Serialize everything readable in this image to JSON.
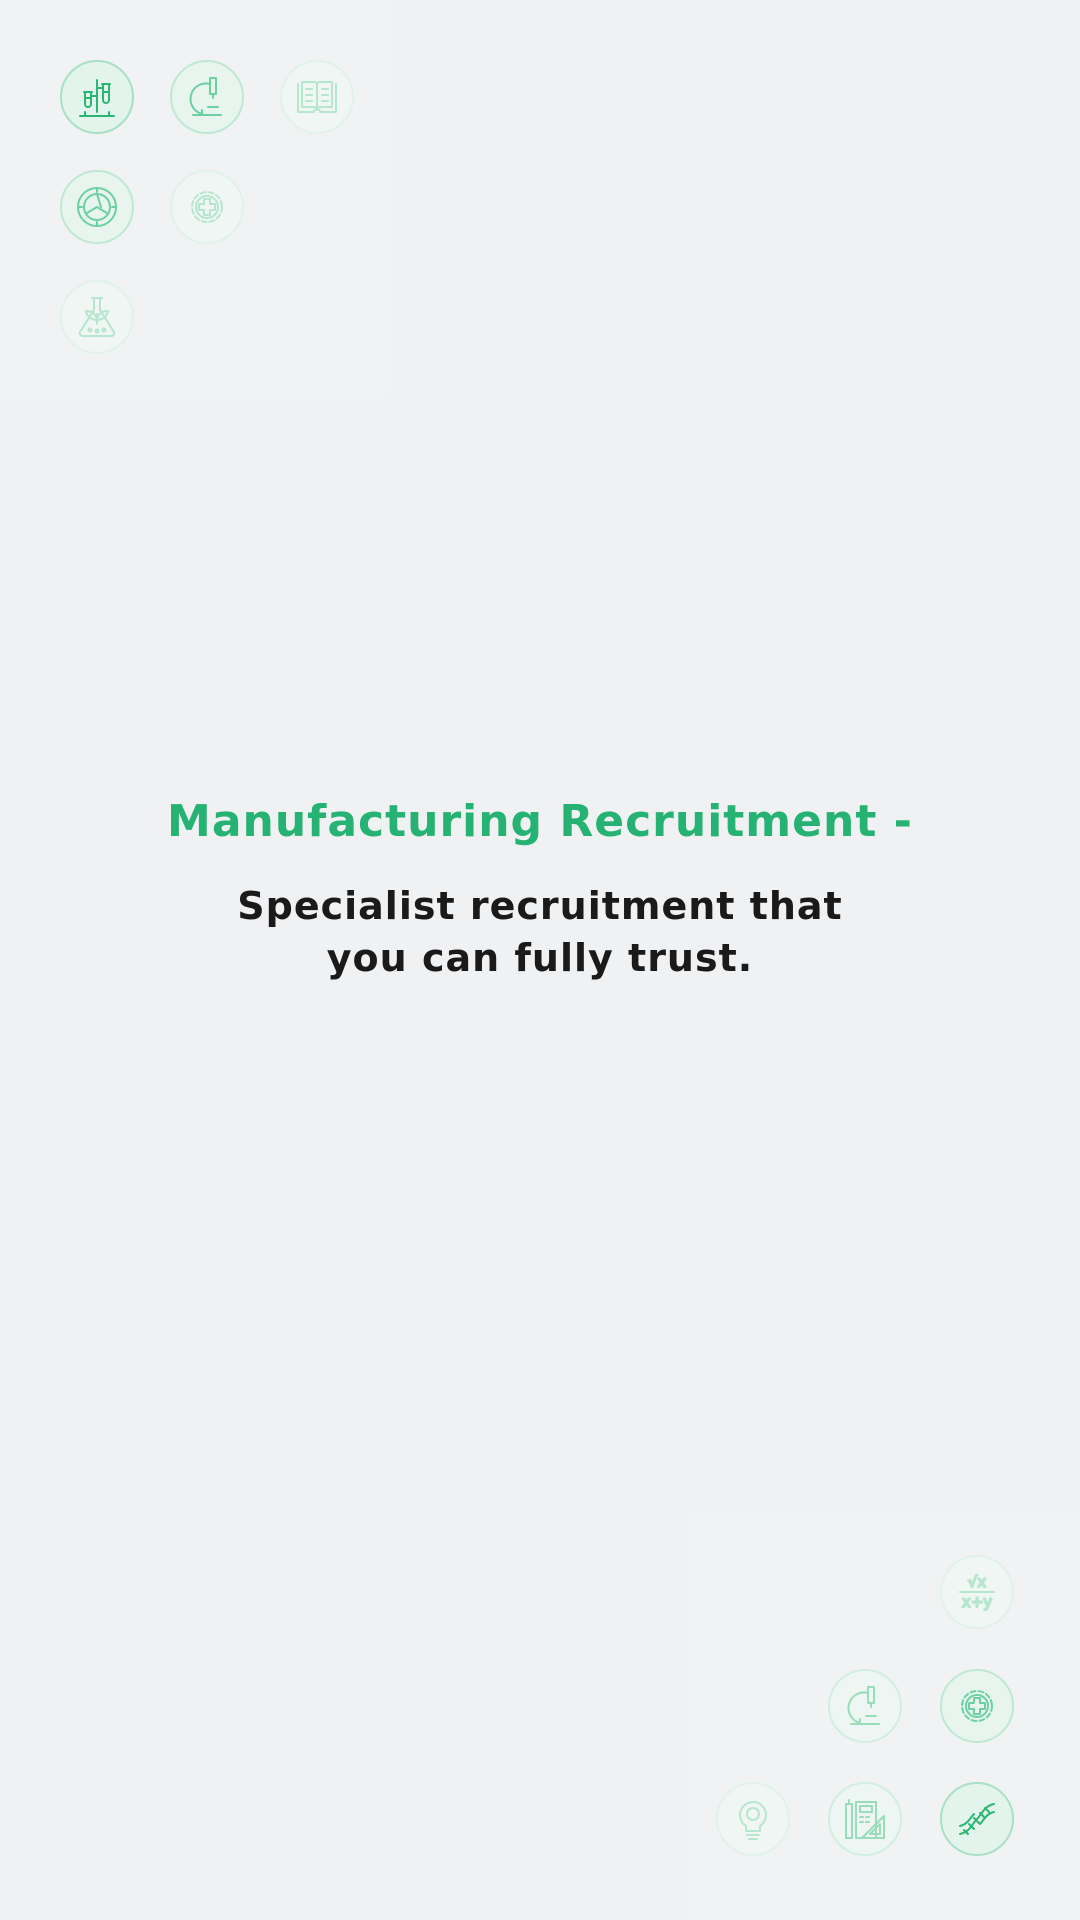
{
  "hero": {
    "title": "Manufacturing Recruitment -",
    "subtitle_line1": "Specialist recruitment that",
    "subtitle_line2": "you can fully trust."
  },
  "colors": {
    "accent": "#25b272",
    "text": "#1a1a1a",
    "background": "#f0f1f3"
  },
  "icons_top_left": [
    "test-tubes-icon",
    "microscope-icon",
    "book-icon",
    "aperture-icon",
    "gear-plus-icon",
    "plant-flask-icon"
  ],
  "icons_bottom_right": [
    "math-formula-icon",
    "microscope-icon",
    "gear-plus-icon",
    "lightbulb-icon",
    "calculator-ruler-icon",
    "dna-icon"
  ],
  "formula": {
    "top": "√x",
    "bottom": "x+y"
  }
}
